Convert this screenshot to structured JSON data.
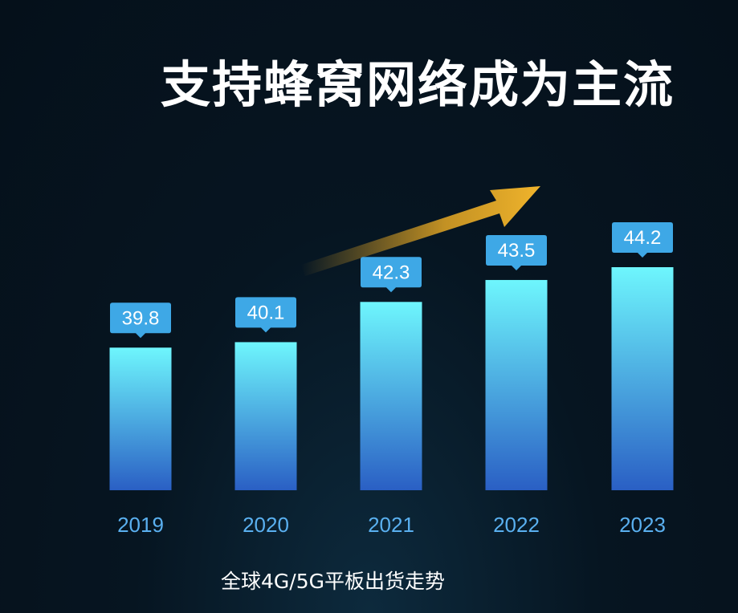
{
  "header": {
    "title": "支持蜂窝网络成为主流"
  },
  "footer": {
    "caption": "全球4G/5G平板出货走势"
  },
  "colors": {
    "bar_top": "#6ef6fd",
    "bar_bottom": "#2a5fc4",
    "label_box": "#3ea8e6",
    "arrow": "#e4a724",
    "tick": "#5ab0f0"
  },
  "chart_data": {
    "type": "bar",
    "categories": [
      "2019",
      "2020",
      "2021",
      "2022",
      "2023"
    ],
    "values": [
      39.8,
      40.1,
      42.3,
      43.5,
      44.2
    ],
    "ylim": [
      32,
      45.5
    ],
    "grid": false,
    "legend": "none",
    "annotations": [
      "upward-trend-arrow"
    ]
  }
}
